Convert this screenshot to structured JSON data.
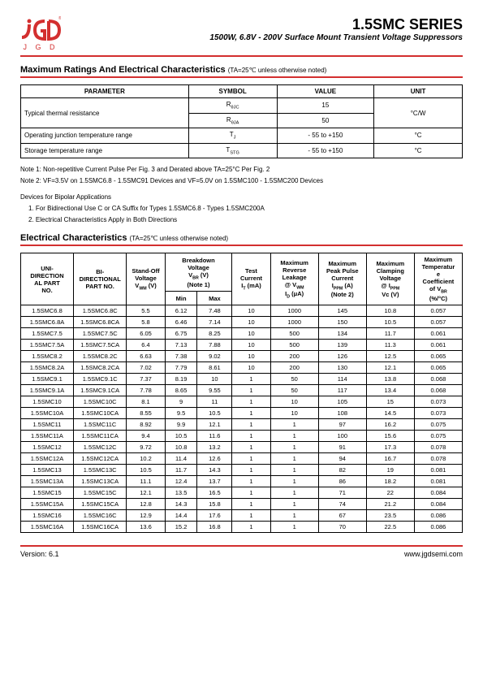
{
  "header": {
    "logo_text": "J G D",
    "title": "1.5SMC SERIES",
    "subtitle": "1500W, 6.8V - 200V Surface Mount Transient Voltage Suppressors"
  },
  "section1": {
    "title": "Maximum Ratings And Electrical Characteristics",
    "condition": "(TA=25℃ unless otherwise noted)"
  },
  "ratings": {
    "headers": [
      "PARAMETER",
      "SYMBOL",
      "VALUE",
      "UNIT"
    ],
    "rows": [
      {
        "param": "Typical thermal resistance",
        "rowspan": 2,
        "symbol": "RθJC",
        "value": "15",
        "unit": "°C/W",
        "unit_rowspan": 2
      },
      {
        "symbol": "RθJA",
        "value": "50"
      },
      {
        "param": "Operating junction temperature range",
        "symbol": "TJ",
        "value": "- 55 to +150",
        "unit": "°C"
      },
      {
        "param": "Storage temperature range",
        "symbol": "TSTG",
        "value": "- 55 to +150",
        "unit": "°C"
      }
    ]
  },
  "notes": {
    "n1": "Note 1: Non-repetitive Current Pulse Per Fig. 3 and Derated above TA=25°C Per Fig. 2",
    "n2": "Note 2: VF=3.5V on 1.5SMC6.8 - 1.5SMC91 Devices and VF=5.0V on 1.5SMC100 - 1.5SMC200 Devices",
    "bipolar_title": "Devices for Bipolar Applications",
    "b1": "1. For Bidirectional Use C or CA Suffix for Types 1.5SMC6.8 - Types 1.5SMC200A",
    "b2": "2. Electrical Characteristics Apply in Both Directions"
  },
  "section2": {
    "title": "Electrical Characteristics",
    "condition": "(TA=25℃ unless otherwise noted)"
  },
  "echar": {
    "headers": {
      "c1": "UNI-DIRECTIONAL PART NO.",
      "c2": "BI-DIRECTIONAL PART NO.",
      "c3": "Stand-Off Voltage VWM (V)",
      "c4": "Breakdown Voltage VBR (V) (Note 1)",
      "c4a": "Min",
      "c4b": "Max",
      "c5": "Test Current IT (mA)",
      "c6": "Maximum Reverse Leakage @ VWM ID (μA)",
      "c7": "Maximum Peak Pulse Current IPPM (A) (Note 2)",
      "c8": "Maximum Clamping Voltage @ IPPM Vc (V)",
      "c9": "Maximum Temperature Coefficient of VBR (%/°C)"
    },
    "rows": [
      [
        "1.5SMC6.8",
        "1.5SMC6.8C",
        "5.5",
        "6.12",
        "7.48",
        "10",
        "1000",
        "145",
        "10.8",
        "0.057"
      ],
      [
        "1.5SMC6.8A",
        "1.5SMC6.8CA",
        "5.8",
        "6.46",
        "7.14",
        "10",
        "1000",
        "150",
        "10.5",
        "0.057"
      ],
      [
        "1.5SMC7.5",
        "1.5SMC7.5C",
        "6.05",
        "6.75",
        "8.25",
        "10",
        "500",
        "134",
        "11.7",
        "0.061"
      ],
      [
        "1.5SMC7.5A",
        "1.5SMC7.5CA",
        "6.4",
        "7.13",
        "7.88",
        "10",
        "500",
        "139",
        "11.3",
        "0.061"
      ],
      [
        "1.5SMC8.2",
        "1.5SMC8.2C",
        "6.63",
        "7.38",
        "9.02",
        "10",
        "200",
        "126",
        "12.5",
        "0.065"
      ],
      [
        "1.5SMC8.2A",
        "1.5SMC8.2CA",
        "7.02",
        "7.79",
        "8.61",
        "10",
        "200",
        "130",
        "12.1",
        "0.065"
      ],
      [
        "1.5SMC9.1",
        "1.5SMC9.1C",
        "7.37",
        "8.19",
        "10",
        "1",
        "50",
        "114",
        "13.8",
        "0.068"
      ],
      [
        "1.5SMC9.1A",
        "1.5SMC9.1CA",
        "7.78",
        "8.65",
        "9.55",
        "1",
        "50",
        "117",
        "13.4",
        "0.068"
      ],
      [
        "1.5SMC10",
        "1.5SMC10C",
        "8.1",
        "9",
        "11",
        "1",
        "10",
        "105",
        "15",
        "0.073"
      ],
      [
        "1.5SMC10A",
        "1.5SMC10CA",
        "8.55",
        "9.5",
        "10.5",
        "1",
        "10",
        "108",
        "14.5",
        "0.073"
      ],
      [
        "1.5SMC11",
        "1.5SMC11C",
        "8.92",
        "9.9",
        "12.1",
        "1",
        "1",
        "97",
        "16.2",
        "0.075"
      ],
      [
        "1.5SMC11A",
        "1.5SMC11CA",
        "9.4",
        "10.5",
        "11.6",
        "1",
        "1",
        "100",
        "15.6",
        "0.075"
      ],
      [
        "1.5SMC12",
        "1.5SMC12C",
        "9.72",
        "10.8",
        "13.2",
        "1",
        "1",
        "91",
        "17.3",
        "0.078"
      ],
      [
        "1.5SMC12A",
        "1.5SMC12CA",
        "10.2",
        "11.4",
        "12.6",
        "1",
        "1",
        "94",
        "16.7",
        "0.078"
      ],
      [
        "1.5SMC13",
        "1.5SMC13C",
        "10.5",
        "11.7",
        "14.3",
        "1",
        "1",
        "82",
        "19",
        "0.081"
      ],
      [
        "1.5SMC13A",
        "1.5SMC13CA",
        "11.1",
        "12.4",
        "13.7",
        "1",
        "1",
        "86",
        "18.2",
        "0.081"
      ],
      [
        "1.5SMC15",
        "1.5SMC15C",
        "12.1",
        "13.5",
        "16.5",
        "1",
        "1",
        "71",
        "22",
        "0.084"
      ],
      [
        "1.5SMC15A",
        "1.5SMC15CA",
        "12.8",
        "14.3",
        "15.8",
        "1",
        "1",
        "74",
        "21.2",
        "0.084"
      ],
      [
        "1.5SMC16",
        "1.5SMC16C",
        "12.9",
        "14.4",
        "17.6",
        "1",
        "1",
        "67",
        "23.5",
        "0.086"
      ],
      [
        "1.5SMC16A",
        "1.5SMC16CA",
        "13.6",
        "15.2",
        "16.8",
        "1",
        "1",
        "70",
        "22.5",
        "0.086"
      ]
    ]
  },
  "footer": {
    "version": "Version: 6.1",
    "url": "www.jgdsemi.com"
  }
}
